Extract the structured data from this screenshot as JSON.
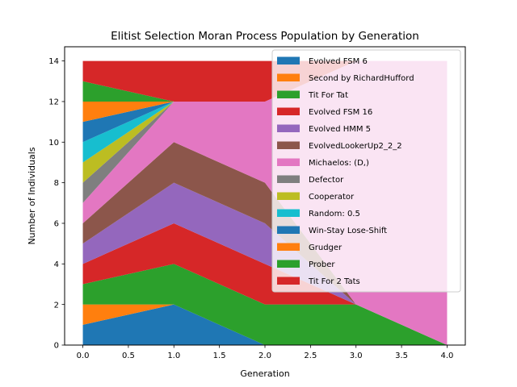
{
  "chart_data": {
    "type": "area",
    "title": "Elitist Selection Moran Process Population by Generation",
    "xlabel": "Generation",
    "ylabel": "Number of Individuals",
    "x": [
      0,
      1,
      2,
      3,
      4
    ],
    "xlim": [
      -0.2,
      4.2
    ],
    "ylim": [
      0,
      14.7
    ],
    "xticks": [
      "0.0",
      "0.5",
      "1.0",
      "1.5",
      "2.0",
      "2.5",
      "3.0",
      "3.5",
      "4.0"
    ],
    "yticks": [
      "0",
      "2",
      "4",
      "6",
      "8",
      "10",
      "12",
      "14"
    ],
    "grid": false,
    "legend_position": "top-right",
    "series": [
      {
        "name": "Evolved FSM 6",
        "color": "#1f77b4",
        "values": [
          1,
          2,
          0,
          0,
          0
        ]
      },
      {
        "name": "Second by RichardHufford",
        "color": "#ff7f0e",
        "values": [
          1,
          0,
          0,
          0,
          0
        ]
      },
      {
        "name": "Tit For Tat",
        "color": "#2ca02c",
        "values": [
          1,
          2,
          2,
          2,
          0
        ]
      },
      {
        "name": "Evolved FSM 16",
        "color": "#d62728",
        "values": [
          1,
          2,
          2,
          0,
          0
        ]
      },
      {
        "name": "Evolved HMM 5",
        "color": "#9467bd",
        "values": [
          1,
          2,
          2,
          0,
          0
        ]
      },
      {
        "name": "EvolvedLookerUp2_2_2",
        "color": "#8c564b",
        "values": [
          1,
          2,
          2,
          0,
          0
        ]
      },
      {
        "name": "Michaelos: (D,)",
        "color": "#e377c2",
        "values": [
          1,
          2,
          4,
          12,
          14
        ]
      },
      {
        "name": "Defector",
        "color": "#7f7f7f",
        "values": [
          1,
          0,
          0,
          0,
          0
        ]
      },
      {
        "name": "Cooperator",
        "color": "#bcbd22",
        "values": [
          1,
          0,
          0,
          0,
          0
        ]
      },
      {
        "name": "Random: 0.5",
        "color": "#17becf",
        "values": [
          1,
          0,
          0,
          0,
          0
        ]
      },
      {
        "name": "Win-Stay Lose-Shift",
        "color": "#1f77b4",
        "values": [
          1,
          0,
          0,
          0,
          0
        ]
      },
      {
        "name": "Grudger",
        "color": "#ff7f0e",
        "values": [
          1,
          0,
          0,
          0,
          0
        ]
      },
      {
        "name": "Prober",
        "color": "#2ca02c",
        "values": [
          1,
          0,
          0,
          0,
          0
        ]
      },
      {
        "name": "Tit For 2 Tats",
        "color": "#d62728",
        "values": [
          1,
          2,
          2,
          0,
          0
        ]
      }
    ]
  }
}
